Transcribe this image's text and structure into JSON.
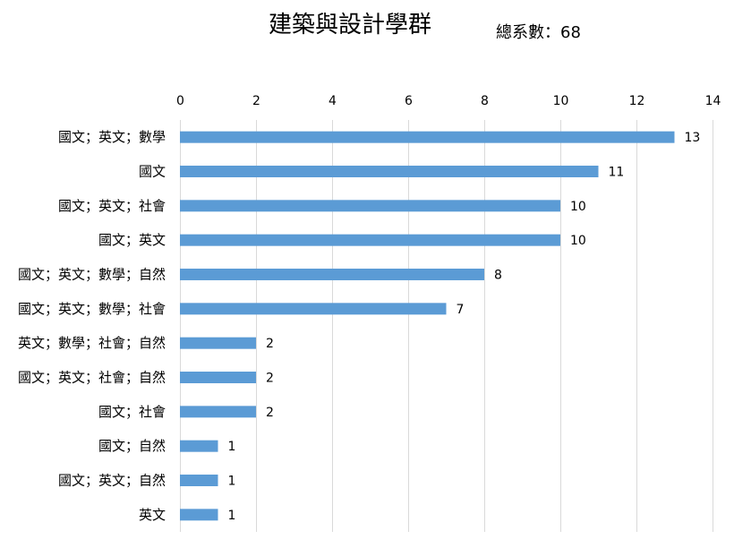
{
  "chart_data": {
    "type": "bar",
    "orientation": "horizontal",
    "title": "建築與設計學群",
    "subtitle": "總系數：68",
    "categories": [
      "國文；英文；數學",
      "國文",
      "國文；英文；社會",
      "國文；英文",
      "國文；英文；數學；自然",
      "國文；英文；數學；社會",
      "英文；數學；社會；自然",
      "國文；英文；社會；自然",
      "國文；社會",
      "國文；自然",
      "國文；英文；自然",
      "英文"
    ],
    "values": [
      13,
      11,
      10,
      10,
      8,
      7,
      2,
      2,
      2,
      1,
      1,
      1
    ],
    "xlim": [
      0,
      14
    ],
    "xticks": [
      "0",
      "2",
      "4",
      "6",
      "8",
      "10",
      "12",
      "14"
    ],
    "xaxis_position": "top",
    "grid": true,
    "legend": "none",
    "bar_color": "#5B9BD5",
    "grid_color": "#D9D9D9"
  }
}
